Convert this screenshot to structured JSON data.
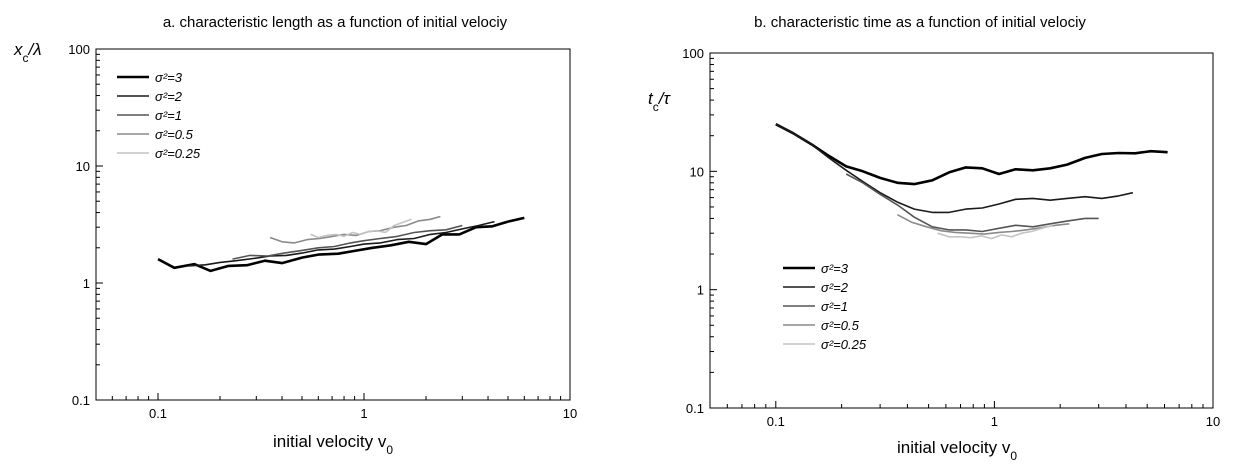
{
  "chart_data": [
    {
      "type": "line",
      "title": "a. characteristic length as a function of initial velociy",
      "xlabel": "initial velocity v",
      "xlabel_sub": "0",
      "ylabel": "x",
      "ylabel_sub": "c",
      "ylabel_rest": "/λ",
      "xscale": "log",
      "yscale": "log",
      "xlim": [
        0.05,
        10
      ],
      "ylim": [
        0.1,
        100
      ],
      "x_ticks": [
        "0.1",
        "1",
        "10"
      ],
      "y_ticks": [
        "0.1",
        "1",
        "10",
        "100"
      ],
      "grid": false,
      "legend_position": "top-left",
      "series": [
        {
          "name": "σ²=3",
          "color": "#000000",
          "x": [
            0.1,
            0.12,
            0.15,
            0.18,
            0.22,
            0.27,
            0.33,
            0.4,
            0.5,
            0.6,
            0.75,
            0.9,
            1.1,
            1.35,
            1.65,
            2.0,
            2.4,
            2.9,
            3.5,
            4.2,
            5.0,
            6.0
          ],
          "values": [
            1.6,
            1.35,
            1.45,
            1.27,
            1.4,
            1.42,
            1.55,
            1.48,
            1.65,
            1.75,
            1.78,
            1.88,
            2.0,
            2.1,
            2.25,
            2.15,
            2.6,
            2.6,
            3.0,
            3.05,
            3.35,
            3.6
          ]
        },
        {
          "name": "σ²=2",
          "color": "#1a1a1a",
          "x": [
            0.14,
            0.17,
            0.2,
            0.24,
            0.29,
            0.35,
            0.42,
            0.5,
            0.6,
            0.72,
            0.86,
            1.0,
            1.2,
            1.45,
            1.75,
            2.1,
            2.5,
            3.0,
            3.6,
            4.3
          ],
          "values": [
            1.4,
            1.43,
            1.5,
            1.55,
            1.62,
            1.7,
            1.72,
            1.8,
            1.92,
            1.95,
            2.05,
            2.15,
            2.2,
            2.35,
            2.4,
            2.6,
            2.7,
            2.9,
            3.1,
            3.35
          ]
        },
        {
          "name": "σ²=1",
          "color": "#555555",
          "x": [
            0.23,
            0.28,
            0.34,
            0.41,
            0.5,
            0.6,
            0.72,
            0.86,
            1.0,
            1.2,
            1.45,
            1.75,
            2.1,
            2.5,
            3.0
          ],
          "values": [
            1.6,
            1.72,
            1.7,
            1.8,
            1.9,
            2.0,
            2.05,
            2.2,
            2.3,
            2.4,
            2.5,
            2.7,
            2.8,
            2.85,
            3.1
          ]
        },
        {
          "name": "σ²=0.5",
          "color": "#8a8a8a",
          "x": [
            0.35,
            0.4,
            0.46,
            0.53,
            0.61,
            0.7,
            0.8,
            0.92,
            1.05,
            1.2,
            1.4,
            1.6,
            1.85,
            2.1,
            2.35
          ],
          "values": [
            2.45,
            2.25,
            2.2,
            2.35,
            2.4,
            2.5,
            2.6,
            2.55,
            2.75,
            2.8,
            3.0,
            3.1,
            3.4,
            3.5,
            3.7
          ]
        },
        {
          "name": "σ²=0.25",
          "color": "#c4c4c4",
          "x": [
            0.55,
            0.6,
            0.66,
            0.73,
            0.8,
            0.88,
            0.96,
            1.05,
            1.15,
            1.27,
            1.4,
            1.55,
            1.7
          ],
          "values": [
            2.6,
            2.45,
            2.55,
            2.6,
            2.5,
            2.7,
            2.6,
            2.75,
            2.8,
            2.7,
            3.1,
            3.3,
            3.5
          ]
        }
      ]
    },
    {
      "type": "line",
      "title": "b. characteristic time as a function of initial velociy",
      "xlabel": "initial velocity v",
      "xlabel_sub": "0",
      "ylabel": "t",
      "ylabel_sub": "c",
      "ylabel_rest": "/τ",
      "xscale": "log",
      "yscale": "log",
      "xlim": [
        0.05,
        10
      ],
      "ylim": [
        0.1,
        100
      ],
      "x_ticks": [
        "0.1",
        "1",
        "10"
      ],
      "y_ticks": [
        "0.1",
        "1",
        "10",
        "100"
      ],
      "grid": false,
      "legend_position": "bottom-left",
      "series": [
        {
          "name": "σ²=3",
          "color": "#000000",
          "x": [
            0.1,
            0.12,
            0.145,
            0.175,
            0.21,
            0.25,
            0.3,
            0.36,
            0.43,
            0.52,
            0.62,
            0.74,
            0.88,
            1.05,
            1.25,
            1.5,
            1.8,
            2.15,
            2.6,
            3.1,
            3.7,
            4.4,
            5.2,
            6.2
          ],
          "values": [
            25,
            21,
            17,
            13.5,
            11,
            10,
            8.8,
            8.0,
            7.8,
            8.4,
            9.8,
            10.8,
            10.6,
            9.5,
            10.4,
            10.2,
            10.6,
            11.4,
            13.0,
            14.0,
            14.3,
            14.2,
            14.8,
            14.5
          ]
        },
        {
          "name": "σ²=2",
          "color": "#1a1a1a",
          "x": [
            0.1,
            0.12,
            0.145,
            0.175,
            0.21,
            0.25,
            0.3,
            0.36,
            0.43,
            0.52,
            0.62,
            0.74,
            0.88,
            1.05,
            1.25,
            1.5,
            1.8,
            2.15,
            2.6,
            3.1,
            3.7,
            4.3
          ],
          "values": [
            25,
            21,
            17,
            13,
            10.2,
            8.2,
            6.6,
            5.5,
            4.8,
            4.5,
            4.5,
            4.8,
            4.9,
            5.3,
            5.8,
            5.9,
            5.7,
            5.9,
            6.1,
            5.9,
            6.2,
            6.6
          ]
        },
        {
          "name": "σ²=1",
          "color": "#555555",
          "x": [
            0.21,
            0.25,
            0.3,
            0.36,
            0.43,
            0.52,
            0.62,
            0.74,
            0.88,
            1.05,
            1.25,
            1.5,
            1.8,
            2.15,
            2.6,
            3.0
          ],
          "values": [
            9.5,
            8.0,
            6.4,
            5.2,
            4.1,
            3.4,
            3.2,
            3.2,
            3.1,
            3.3,
            3.5,
            3.4,
            3.6,
            3.8,
            4.0,
            4.0
          ]
        },
        {
          "name": "σ²=0.5",
          "color": "#8a8a8a",
          "x": [
            0.36,
            0.42,
            0.49,
            0.57,
            0.66,
            0.77,
            0.9,
            1.05,
            1.2,
            1.4,
            1.65,
            1.9,
            2.2
          ],
          "values": [
            4.3,
            3.7,
            3.4,
            3.15,
            3.05,
            3.0,
            2.95,
            3.05,
            3.1,
            3.2,
            3.35,
            3.5,
            3.6
          ]
        },
        {
          "name": "σ²=0.25",
          "color": "#c4c4c4",
          "x": [
            0.55,
            0.62,
            0.7,
            0.78,
            0.87,
            0.97,
            1.08,
            1.2,
            1.33,
            1.48,
            1.65,
            1.85
          ],
          "values": [
            3.0,
            2.8,
            2.8,
            2.75,
            2.85,
            2.7,
            2.9,
            2.8,
            3.0,
            3.1,
            3.3,
            3.5
          ]
        }
      ]
    }
  ]
}
